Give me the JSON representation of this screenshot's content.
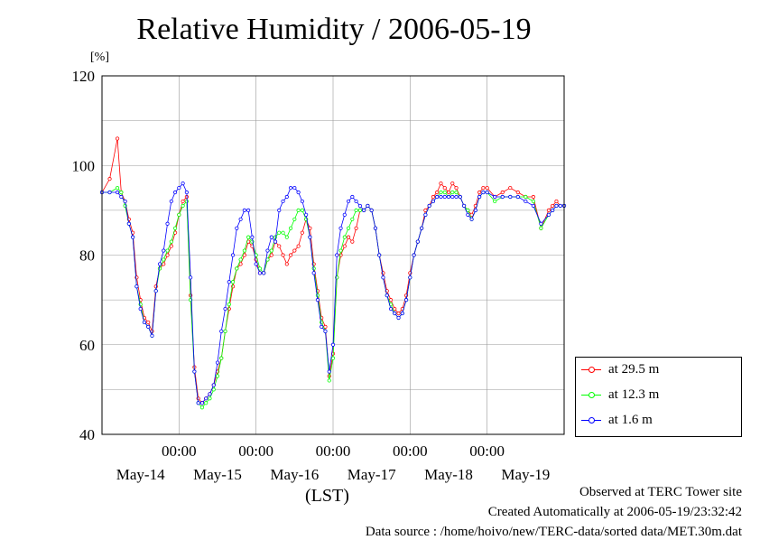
{
  "chart_data": {
    "type": "line",
    "title": "Relative Humidity / 2006-05-19",
    "ylabel": "[%]",
    "xlabel": "(LST)",
    "ylim": [
      40,
      120
    ],
    "yticks": [
      40,
      60,
      80,
      100,
      120
    ],
    "xlim": [
      0,
      6
    ],
    "day_labels": [
      "May-14",
      "May-15",
      "May-16",
      "May-17",
      "May-18",
      "May-19"
    ],
    "midnight_labels": [
      "00:00",
      "00:00",
      "00:00",
      "00:00",
      "00:00"
    ],
    "grid": true,
    "legend_position": "right",
    "series": [
      {
        "name": "at 29.5 m",
        "color": "#ff0000",
        "x": [
          0,
          0.1,
          0.2,
          0.25,
          0.3,
          0.35,
          0.4,
          0.45,
          0.5,
          0.55,
          0.6,
          0.65,
          0.7,
          0.75,
          0.8,
          0.85,
          0.9,
          0.95,
          1.0,
          1.05,
          1.1,
          1.15,
          1.2,
          1.25,
          1.3,
          1.35,
          1.4,
          1.45,
          1.5,
          1.55,
          1.6,
          1.65,
          1.7,
          1.75,
          1.8,
          1.85,
          1.9,
          1.95,
          2.0,
          2.05,
          2.1,
          2.15,
          2.2,
          2.25,
          2.3,
          2.35,
          2.4,
          2.45,
          2.5,
          2.55,
          2.6,
          2.65,
          2.7,
          2.75,
          2.8,
          2.85,
          2.9,
          2.95,
          3.0,
          3.05,
          3.1,
          3.15,
          3.2,
          3.25,
          3.3,
          3.35,
          3.4,
          3.45,
          3.5,
          3.55,
          3.6,
          3.65,
          3.7,
          3.75,
          3.8,
          3.85,
          3.9,
          3.95,
          4.0,
          4.05,
          4.1,
          4.15,
          4.2,
          4.25,
          4.3,
          4.35,
          4.4,
          4.45,
          4.5,
          4.55,
          4.6,
          4.65,
          4.7,
          4.75,
          4.8,
          4.85,
          4.9,
          4.95,
          5.0,
          5.1,
          5.2,
          5.3,
          5.4,
          5.5,
          5.6,
          5.7,
          5.8,
          5.85,
          5.9,
          5.95,
          6.0
        ],
        "y": [
          94,
          97,
          106,
          94,
          92,
          88,
          85,
          75,
          70,
          66,
          65,
          63,
          73,
          77,
          78,
          80,
          82,
          85,
          89,
          92,
          93,
          71,
          55,
          48,
          47,
          48,
          49,
          51,
          54,
          57,
          63,
          68,
          73,
          77,
          78,
          80,
          83,
          82,
          79,
          76,
          76,
          79,
          80,
          83,
          82,
          80,
          78,
          80,
          81,
          82,
          85,
          88,
          86,
          78,
          72,
          66,
          64,
          53,
          58,
          75,
          80,
          82,
          84,
          83,
          86,
          90,
          90,
          91,
          90,
          86,
          80,
          76,
          72,
          70,
          68,
          67,
          68,
          71,
          76,
          80,
          83,
          86,
          90,
          91,
          93,
          94,
          96,
          95,
          94,
          96,
          95,
          93,
          91,
          90,
          89,
          91,
          94,
          95,
          95,
          93,
          94,
          95,
          94,
          93,
          93,
          86,
          90,
          91,
          92,
          91,
          91
        ]
      },
      {
        "name": "at 12.3 m",
        "color": "#00ff00",
        "x": [
          0,
          0.1,
          0.2,
          0.25,
          0.3,
          0.35,
          0.4,
          0.45,
          0.5,
          0.55,
          0.6,
          0.65,
          0.7,
          0.75,
          0.8,
          0.85,
          0.9,
          0.95,
          1.0,
          1.05,
          1.1,
          1.15,
          1.2,
          1.25,
          1.3,
          1.35,
          1.4,
          1.45,
          1.5,
          1.55,
          1.6,
          1.65,
          1.7,
          1.75,
          1.8,
          1.85,
          1.9,
          1.95,
          2.0,
          2.05,
          2.1,
          2.15,
          2.2,
          2.25,
          2.3,
          2.35,
          2.4,
          2.45,
          2.5,
          2.55,
          2.6,
          2.65,
          2.7,
          2.75,
          2.8,
          2.85,
          2.9,
          2.95,
          3.0,
          3.05,
          3.1,
          3.15,
          3.2,
          3.25,
          3.3,
          3.35,
          3.4,
          3.45,
          3.5,
          3.55,
          3.6,
          3.65,
          3.7,
          3.75,
          3.8,
          3.85,
          3.9,
          3.95,
          4.0,
          4.05,
          4.1,
          4.15,
          4.2,
          4.25,
          4.3,
          4.35,
          4.4,
          4.45,
          4.5,
          4.55,
          4.6,
          4.65,
          4.7,
          4.75,
          4.8,
          4.85,
          4.9,
          4.95,
          5.0,
          5.1,
          5.2,
          5.3,
          5.4,
          5.5,
          5.6,
          5.7,
          5.8,
          5.85,
          5.9,
          5.95,
          6.0
        ],
        "y": [
          94,
          94,
          95,
          94,
          91,
          87,
          84,
          73,
          69,
          65,
          64,
          62,
          72,
          77,
          79,
          81,
          83,
          86,
          89,
          91,
          92,
          70,
          54,
          47,
          46,
          47,
          48,
          50,
          53,
          57,
          63,
          69,
          74,
          77,
          79,
          81,
          84,
          83,
          80,
          77,
          76,
          79,
          81,
          84,
          85,
          85,
          84,
          86,
          88,
          90,
          90,
          88,
          84,
          77,
          71,
          65,
          63,
          52,
          57,
          75,
          81,
          84,
          86,
          88,
          90,
          90,
          90,
          91,
          90,
          86,
          80,
          75,
          71,
          69,
          67,
          66,
          67,
          70,
          75,
          80,
          83,
          86,
          89,
          91,
          92,
          93,
          94,
          94,
          93,
          94,
          94,
          93,
          91,
          90,
          88,
          90,
          93,
          94,
          94,
          92,
          93,
          93,
          93,
          93,
          92,
          86,
          89,
          90,
          91,
          91,
          91
        ]
      },
      {
        "name": "at 1.6 m",
        "color": "#0000ff",
        "x": [
          0,
          0.1,
          0.2,
          0.25,
          0.3,
          0.35,
          0.4,
          0.45,
          0.5,
          0.55,
          0.6,
          0.65,
          0.7,
          0.75,
          0.8,
          0.85,
          0.9,
          0.95,
          1.0,
          1.05,
          1.1,
          1.15,
          1.2,
          1.25,
          1.3,
          1.35,
          1.4,
          1.45,
          1.5,
          1.55,
          1.6,
          1.65,
          1.7,
          1.75,
          1.8,
          1.85,
          1.9,
          1.95,
          2.0,
          2.05,
          2.1,
          2.15,
          2.2,
          2.25,
          2.3,
          2.35,
          2.4,
          2.45,
          2.5,
          2.55,
          2.6,
          2.65,
          2.7,
          2.75,
          2.8,
          2.85,
          2.9,
          2.95,
          3.0,
          3.05,
          3.1,
          3.15,
          3.2,
          3.25,
          3.3,
          3.35,
          3.4,
          3.45,
          3.5,
          3.55,
          3.6,
          3.65,
          3.7,
          3.75,
          3.8,
          3.85,
          3.9,
          3.95,
          4.0,
          4.05,
          4.1,
          4.15,
          4.2,
          4.25,
          4.3,
          4.35,
          4.4,
          4.45,
          4.5,
          4.55,
          4.6,
          4.65,
          4.7,
          4.75,
          4.8,
          4.85,
          4.9,
          4.95,
          5.0,
          5.1,
          5.2,
          5.3,
          5.4,
          5.5,
          5.6,
          5.7,
          5.8,
          5.85,
          5.9,
          5.95,
          6.0
        ],
        "y": [
          94,
          94,
          94,
          93,
          92,
          87,
          84,
          73,
          68,
          65,
          64,
          62,
          72,
          78,
          81,
          87,
          92,
          94,
          95,
          96,
          94,
          75,
          54,
          47,
          47,
          48,
          49,
          51,
          56,
          63,
          68,
          74,
          80,
          86,
          88,
          90,
          90,
          84,
          78,
          76,
          76,
          81,
          84,
          83,
          90,
          92,
          93,
          95,
          95,
          94,
          92,
          89,
          84,
          76,
          70,
          64,
          63,
          54,
          60,
          80,
          86,
          89,
          92,
          93,
          92,
          91,
          90,
          91,
          90,
          86,
          80,
          75,
          71,
          68,
          67,
          66,
          67,
          70,
          75,
          80,
          83,
          86,
          89,
          91,
          92,
          93,
          93,
          93,
          93,
          93,
          93,
          93,
          91,
          89,
          88,
          90,
          93,
          94,
          94,
          93,
          93,
          93,
          93,
          92,
          91,
          87,
          89,
          90,
          91,
          91,
          91
        ]
      }
    ]
  },
  "footer": {
    "line1": "Observed at TERC Tower site",
    "line2": "Created Automatically at 2006-05-19/23:32:42",
    "line3": "Data source : /home/hoivo/new/TERC-data/sorted  data/MET.30m.dat"
  }
}
